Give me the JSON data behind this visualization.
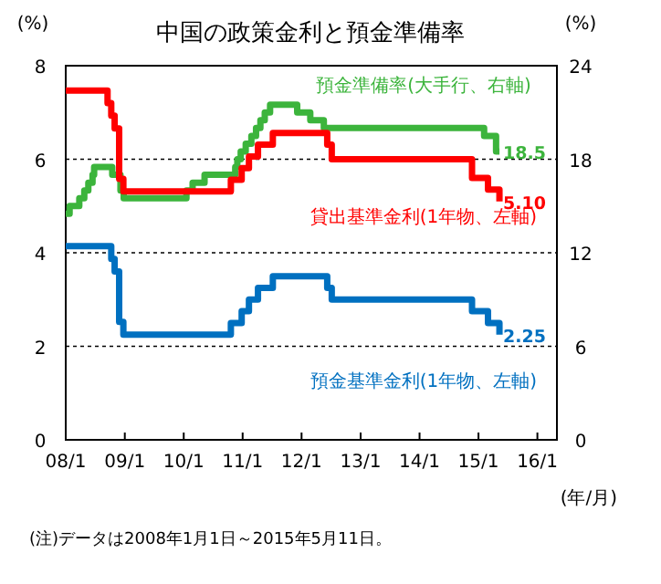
{
  "chart_data": {
    "type": "step",
    "title": "中国の政策金利と預金準備率",
    "xlabel": "(年/月)",
    "ylabel": "(%)",
    "y2label": "(%)",
    "annotations": [
      "(注)データは2008年1月1日～2015年5月11日。"
    ],
    "xlim": [
      "2008-01-01",
      "2016-05-01"
    ],
    "xticks": [
      {
        "value": "2008-01-01",
        "label": "08/1"
      },
      {
        "value": "2009-01-01",
        "label": "09/1"
      },
      {
        "value": "2010-01-01",
        "label": "10/1"
      },
      {
        "value": "2011-01-01",
        "label": "11/1"
      },
      {
        "value": "2012-01-01",
        "label": "12/1"
      },
      {
        "value": "2013-01-01",
        "label": "13/1"
      },
      {
        "value": "2014-01-01",
        "label": "14/1"
      },
      {
        "value": "2015-01-01",
        "label": "15/1"
      },
      {
        "value": "2016-01-01",
        "label": "16/1"
      }
    ],
    "ylim": [
      0,
      8
    ],
    "yticks": [
      0,
      2,
      4,
      6,
      8
    ],
    "y2lim": [
      0,
      24
    ],
    "y2ticks": [
      0,
      6,
      12,
      18,
      24
    ],
    "grid": "y",
    "series": [
      {
        "name": "預金準備率(大手行、右軸)",
        "color": "#3cb43c",
        "axis": "y2",
        "x": [
          "2008-01-01",
          "2008-01-25",
          "2008-03-25",
          "2008-04-25",
          "2008-05-20",
          "2008-06-15",
          "2008-06-25",
          "2008-10-15",
          "2008-12-05",
          "2008-12-25",
          "2010-01-18",
          "2010-02-25",
          "2010-05-10",
          "2010-11-16",
          "2010-11-29",
          "2010-12-20",
          "2011-01-20",
          "2011-02-24",
          "2011-03-25",
          "2011-04-21",
          "2011-05-18",
          "2011-06-20",
          "2011-12-05",
          "2012-02-24",
          "2012-05-18",
          "2015-02-05",
          "2015-04-20",
          "2015-05-11"
        ],
        "values": [
          14.5,
          15,
          15.5,
          16,
          16.5,
          17,
          17.5,
          17,
          16,
          15.5,
          16,
          16.5,
          17,
          17.5,
          18,
          18.5,
          19,
          19.5,
          20,
          20.5,
          21,
          21.5,
          21,
          20.5,
          20,
          19.5,
          18.5,
          18.5
        ],
        "value_labels": [
          null,
          null,
          null,
          null,
          null,
          null,
          null,
          null,
          null,
          null,
          null,
          null,
          null,
          null,
          null,
          null,
          null,
          null,
          null,
          null,
          null,
          null,
          null,
          null,
          null,
          null,
          null,
          "18.5"
        ]
      },
      {
        "name": "貸出基準金利(1年物、左軸)",
        "color": "#ff0000",
        "axis": "y",
        "x": [
          "2008-01-01",
          "2008-09-16",
          "2008-10-09",
          "2008-10-30",
          "2008-11-27",
          "2008-12-23",
          "2010-10-20",
          "2010-12-26",
          "2011-02-09",
          "2011-04-06",
          "2011-07-07",
          "2012-06-08",
          "2012-07-06",
          "2014-11-22",
          "2015-03-01",
          "2015-05-11"
        ],
        "values": [
          7.47,
          7.2,
          6.93,
          6.66,
          5.58,
          5.31,
          5.56,
          5.81,
          6.06,
          6.31,
          6.56,
          6.31,
          6.0,
          5.6,
          5.35,
          5.1
        ],
        "value_labels": [
          null,
          null,
          null,
          null,
          null,
          null,
          null,
          null,
          null,
          null,
          null,
          null,
          null,
          null,
          null,
          "5.10"
        ]
      },
      {
        "name": "預金基準金利(1年物、左軸)",
        "color": "#0070c0",
        "axis": "y",
        "x": [
          "2008-01-01",
          "2008-10-09",
          "2008-10-30",
          "2008-11-27",
          "2008-12-23",
          "2010-10-20",
          "2010-12-26",
          "2011-02-09",
          "2011-04-06",
          "2011-07-07",
          "2012-06-08",
          "2012-07-06",
          "2014-11-22",
          "2015-03-01",
          "2015-05-11"
        ],
        "values": [
          4.14,
          3.87,
          3.6,
          2.52,
          2.25,
          2.5,
          2.75,
          3.0,
          3.25,
          3.5,
          3.25,
          3.0,
          2.75,
          2.5,
          2.25
        ],
        "value_labels": [
          null,
          null,
          null,
          null,
          null,
          null,
          null,
          null,
          null,
          null,
          null,
          null,
          null,
          null,
          "2.25"
        ]
      }
    ]
  }
}
